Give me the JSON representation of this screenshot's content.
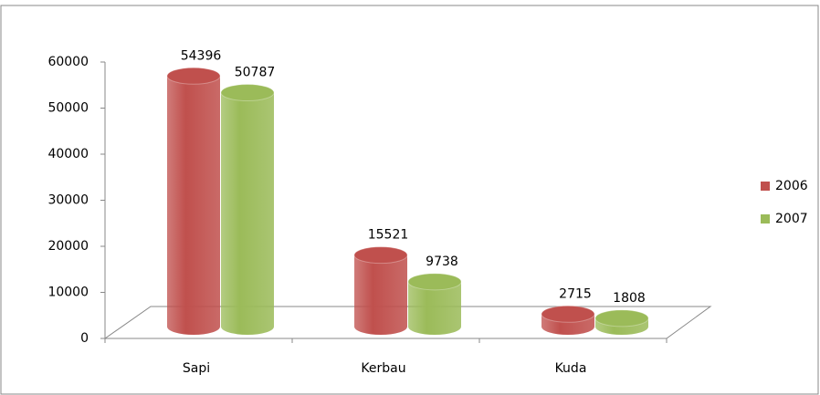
{
  "chart_data": {
    "type": "bar",
    "categories": [
      "Sapi",
      "Kerbau",
      "Kuda"
    ],
    "series": [
      {
        "name": "2006",
        "color": "#c0504d",
        "values": [
          54396,
          15521,
          2715
        ]
      },
      {
        "name": "2007",
        "color": "#9bbb59",
        "values": [
          50787,
          9738,
          1808
        ]
      }
    ],
    "ylim": [
      0,
      60000
    ],
    "yticks": [
      0,
      10000,
      20000,
      30000,
      40000,
      50000,
      60000
    ],
    "legend": "right"
  }
}
